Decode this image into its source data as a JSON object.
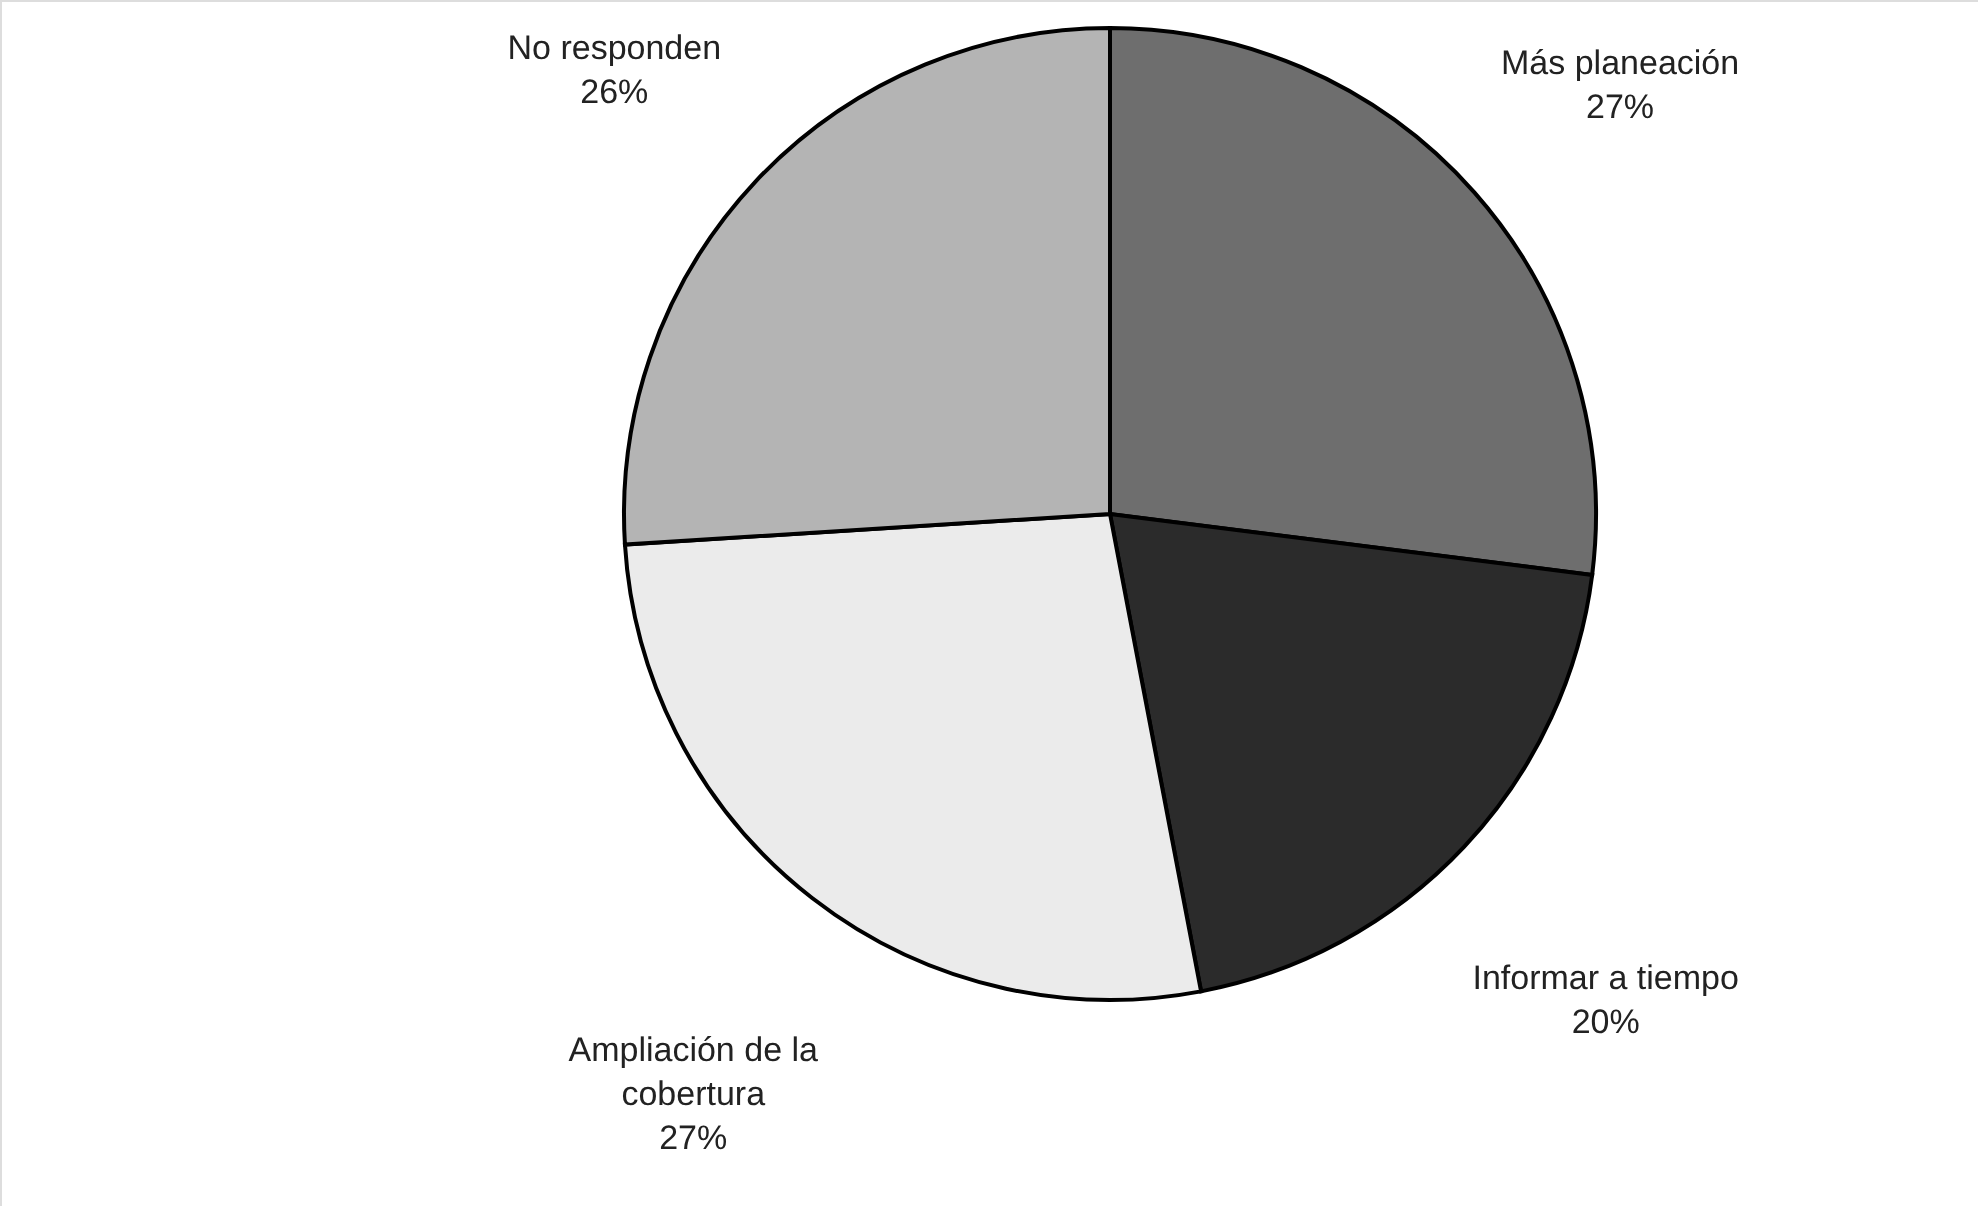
{
  "chart_data": {
    "type": "pie",
    "categories": [
      "Más planeación",
      "Informar a tiempo",
      "Ampliación de la cobertura",
      "No responden"
    ],
    "values": [
      27,
      20,
      27,
      26
    ],
    "colors": [
      "#6e6e6e",
      "#2b2b2b",
      "#ebebeb",
      "#b4b4b4"
    ],
    "value_labels": [
      "27%",
      "20%",
      "27%",
      "26%"
    ]
  }
}
